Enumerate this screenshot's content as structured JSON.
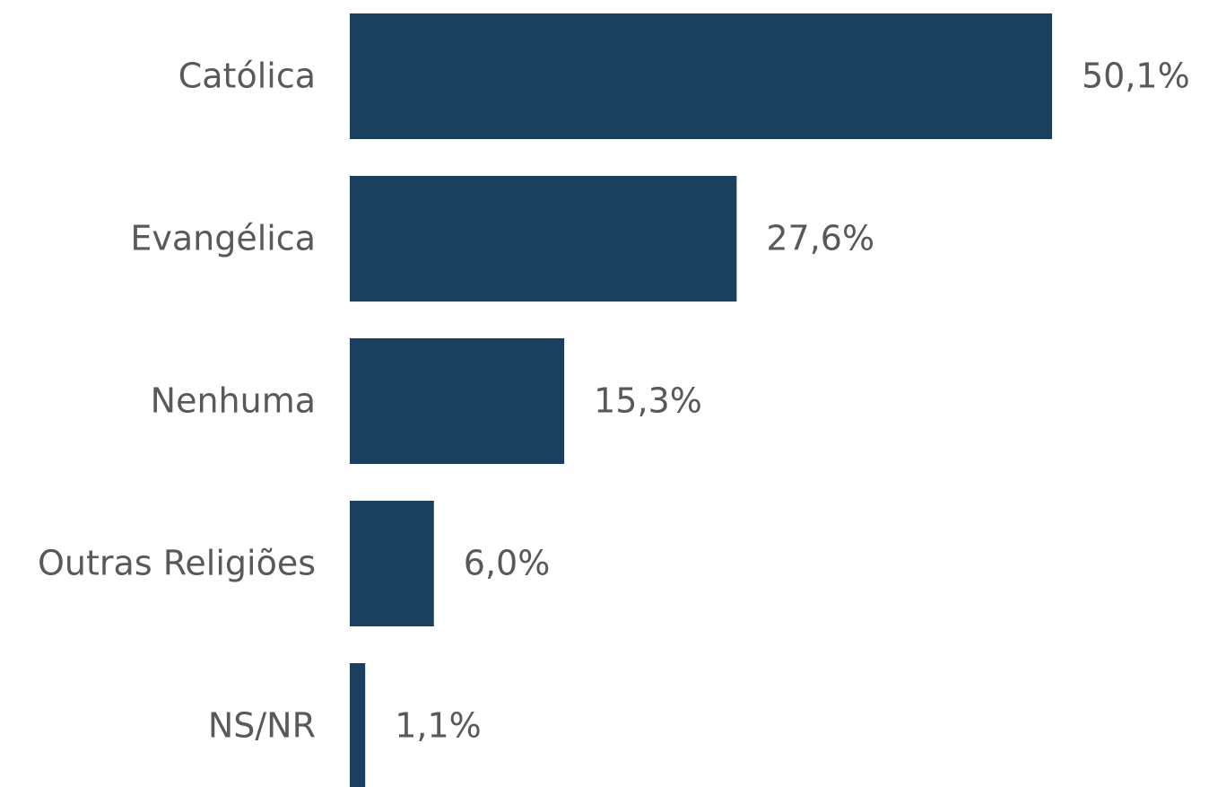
{
  "chart_data": {
    "type": "hbar",
    "categories": [
      "Católica",
      "Evangélica",
      "Nenhuma",
      "Outras Religiões",
      "NS/NR"
    ],
    "values": [
      50.1,
      27.6,
      15.3,
      6.0,
      1.1
    ],
    "value_labels": [
      "50,1%",
      "27,6%",
      "15,3%",
      "6,0%",
      "1,1%"
    ],
    "color": "#1b3f5f"
  }
}
